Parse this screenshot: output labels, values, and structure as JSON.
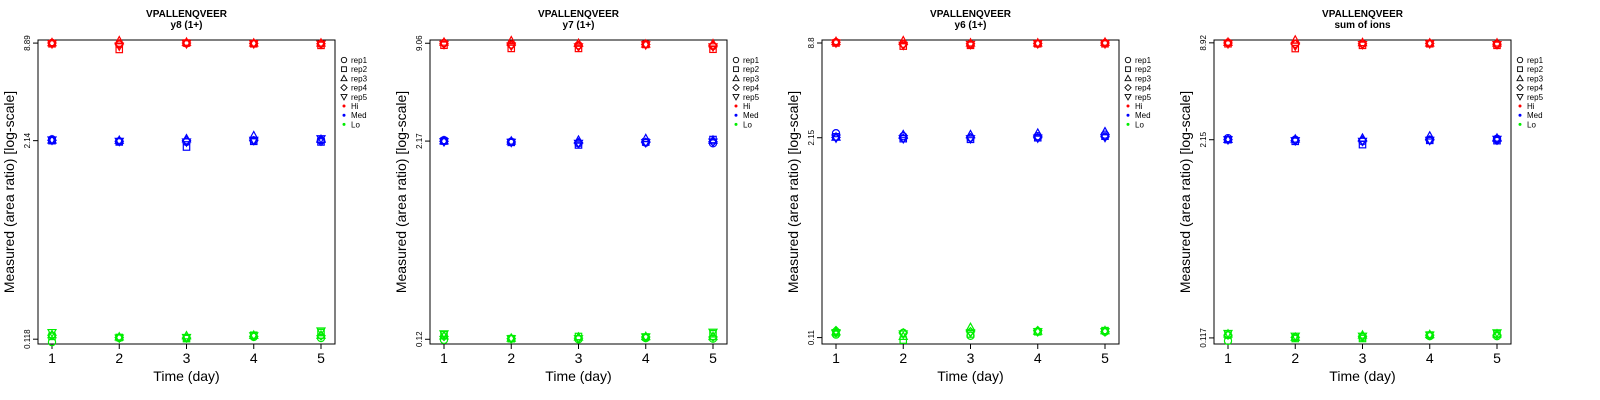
{
  "chart_data": [
    {
      "type": "scatter",
      "title": "VPALLENQVEER",
      "subtitle": "y8 (1+)",
      "xlabel": "Time (day)",
      "ylabel": "Measured (area ratio) [log-scale]",
      "x_ticks": [
        "1",
        "2",
        "3",
        "4",
        "5"
      ],
      "y_ticks": [
        "0.118",
        "2.14",
        "8.89"
      ],
      "y_tick_values": [
        0.118,
        2.14,
        8.89
      ],
      "ylim": [
        0.11,
        9.3
      ],
      "y_scale": "log",
      "x": [
        1,
        2,
        3,
        4,
        5
      ],
      "series": [
        {
          "name": "Hi",
          "color": "#ff0000",
          "reps": [
            [
              8.9,
              8.7,
              8.85,
              8.85,
              8.8
            ],
            [
              8.8,
              8.1,
              8.9,
              8.8,
              8.6
            ],
            [
              8.95,
              9.2,
              9.0,
              8.9,
              8.9
            ],
            [
              8.9,
              8.8,
              8.9,
              8.85,
              8.8
            ],
            [
              8.8,
              8.5,
              8.8,
              8.8,
              8.75
            ]
          ]
        },
        {
          "name": "Med",
          "color": "#0000ff",
          "reps": [
            [
              2.18,
              2.12,
              2.1,
              2.15,
              2.16
            ],
            [
              2.14,
              2.1,
              1.95,
              2.12,
              2.1
            ],
            [
              2.16,
              2.15,
              2.2,
              2.3,
              2.18
            ],
            [
              2.15,
              2.12,
              2.14,
              2.14,
              2.12
            ],
            [
              2.16,
              2.12,
              2.1,
              2.15,
              2.2
            ]
          ]
        },
        {
          "name": "Lo",
          "color": "#00ee00",
          "reps": [
            [
              0.113,
              0.12,
              0.12,
              0.122,
              0.12
            ],
            [
              0.123,
              0.121,
              0.119,
              0.125,
              0.13
            ],
            [
              0.126,
              0.122,
              0.124,
              0.125,
              0.125
            ],
            [
              0.125,
              0.121,
              0.12,
              0.123,
              0.124
            ],
            [
              0.13,
              0.12,
              0.121,
              0.124,
              0.133
            ]
          ]
        }
      ]
    },
    {
      "type": "scatter",
      "title": "VPALLENQVEER",
      "subtitle": "y7 (1+)",
      "xlabel": "Time (day)",
      "ylabel": "Measured (area ratio) [log-scale]",
      "x_ticks": [
        "1",
        "2",
        "3",
        "4",
        "5"
      ],
      "y_ticks": [
        "0.12",
        "2.17",
        "9.06"
      ],
      "y_tick_values": [
        0.12,
        2.17,
        9.06
      ],
      "ylim": [
        0.112,
        9.5
      ],
      "y_scale": "log",
      "x": [
        1,
        2,
        3,
        4,
        5
      ],
      "series": [
        {
          "name": "Hi",
          "color": "#ff0000",
          "reps": [
            [
              9.1,
              8.9,
              8.8,
              8.95,
              8.7
            ],
            [
              8.8,
              8.4,
              8.4,
              8.9,
              8.3
            ],
            [
              9.2,
              9.4,
              9.05,
              8.95,
              9.0
            ],
            [
              9.0,
              8.8,
              8.7,
              8.9,
              8.8
            ],
            [
              8.9,
              8.7,
              8.6,
              8.85,
              8.6
            ]
          ]
        },
        {
          "name": "Med",
          "color": "#0000ff",
          "reps": [
            [
              2.2,
              2.15,
              2.1,
              2.12,
              2.1
            ],
            [
              2.17,
              2.13,
              2.05,
              2.14,
              2.22
            ],
            [
              2.18,
              2.17,
              2.2,
              2.25,
              2.2
            ],
            [
              2.16,
              2.14,
              2.12,
              2.13,
              2.15
            ],
            [
              2.15,
              2.13,
              2.1,
              2.12,
              2.14
            ]
          ]
        },
        {
          "name": "Lo",
          "color": "#00ee00",
          "reps": [
            [
              0.119,
              0.121,
              0.12,
              0.122,
              0.121
            ],
            [
              0.128,
              0.121,
              0.125,
              0.124,
              0.13
            ],
            [
              0.126,
              0.122,
              0.124,
              0.125,
              0.125
            ],
            [
              0.125,
              0.121,
              0.122,
              0.124,
              0.124
            ],
            [
              0.13,
              0.121,
              0.121,
              0.124,
              0.133
            ]
          ]
        }
      ]
    },
    {
      "type": "scatter",
      "title": "VPALLENQVEER",
      "subtitle": "y6 (1+)",
      "xlabel": "Time (day)",
      "ylabel": "Measured (area ratio) [log-scale]",
      "x_ticks": [
        "1",
        "2",
        "3",
        "4",
        "5"
      ],
      "y_ticks": [
        "0.11",
        "2.15",
        "8.8"
      ],
      "y_tick_values": [
        0.11,
        2.15,
        8.8
      ],
      "ylim": [
        0.1,
        9.2
      ],
      "y_scale": "log",
      "x": [
        1,
        2,
        3,
        4,
        5
      ],
      "series": [
        {
          "name": "Hi",
          "color": "#ff0000",
          "reps": [
            [
              8.9,
              8.7,
              8.6,
              8.7,
              8.8
            ],
            [
              8.8,
              8.4,
              8.5,
              8.7,
              8.7
            ],
            [
              9.0,
              9.1,
              8.8,
              8.8,
              8.9
            ],
            [
              8.9,
              8.6,
              8.7,
              8.75,
              8.8
            ],
            [
              8.8,
              8.5,
              8.6,
              8.7,
              8.7
            ]
          ]
        },
        {
          "name": "Med",
          "color": "#0000ff",
          "reps": [
            [
              2.3,
              2.2,
              2.15,
              2.2,
              2.25
            ],
            [
              2.18,
              2.12,
              2.1,
              2.15,
              2.2
            ],
            [
              2.17,
              2.25,
              2.25,
              2.3,
              2.35
            ],
            [
              2.16,
              2.13,
              2.15,
              2.15,
              2.18
            ],
            [
              2.14,
              2.12,
              2.12,
              2.14,
              2.16
            ]
          ]
        },
        {
          "name": "Lo",
          "color": "#00ee00",
          "reps": [
            [
              0.115,
              0.118,
              0.113,
              0.12,
              0.12
            ],
            [
              0.118,
              0.106,
              0.116,
              0.12,
              0.122
            ],
            [
              0.12,
              0.112,
              0.128,
              0.121,
              0.122
            ],
            [
              0.122,
              0.118,
              0.12,
              0.122,
              0.12
            ],
            [
              0.118,
              0.116,
              0.118,
              0.12,
              0.12
            ]
          ]
        }
      ]
    },
    {
      "type": "scatter",
      "title": "VPALLENQVEER",
      "subtitle": "sum of ions",
      "xlabel": "Time (day)",
      "ylabel": "Measured (area ratio) [log-scale]",
      "x_ticks": [
        "1",
        "2",
        "3",
        "4",
        "5"
      ],
      "y_ticks": [
        "0.117",
        "2.15",
        "8.92"
      ],
      "y_tick_values": [
        0.117,
        2.15,
        8.92
      ],
      "ylim": [
        0.107,
        9.3
      ],
      "y_scale": "log",
      "x": [
        1,
        2,
        3,
        4,
        5
      ],
      "series": [
        {
          "name": "Hi",
          "color": "#ff0000",
          "reps": [
            [
              8.95,
              8.8,
              8.8,
              8.85,
              8.75
            ],
            [
              8.8,
              8.2,
              8.6,
              8.8,
              8.6
            ],
            [
              9.0,
              9.3,
              8.95,
              8.9,
              8.9
            ],
            [
              8.9,
              8.75,
              8.8,
              8.85,
              8.75
            ],
            [
              8.8,
              8.5,
              8.7,
              8.8,
              8.7
            ]
          ]
        },
        {
          "name": "Med",
          "color": "#0000ff",
          "reps": [
            [
              2.2,
              2.15,
              2.1,
              2.15,
              2.18
            ],
            [
              2.15,
              2.1,
              2.0,
              2.13,
              2.12
            ],
            [
              2.16,
              2.17,
              2.2,
              2.27,
              2.2
            ],
            [
              2.15,
              2.12,
              2.13,
              2.14,
              2.13
            ],
            [
              2.15,
              2.12,
              2.1,
              2.13,
              2.16
            ]
          ]
        },
        {
          "name": "Lo",
          "color": "#00ee00",
          "reps": [
            [
              0.112,
              0.118,
              0.118,
              0.12,
              0.12
            ],
            [
              0.122,
              0.116,
              0.116,
              0.122,
              0.124
            ],
            [
              0.124,
              0.118,
              0.122,
              0.123,
              0.124
            ],
            [
              0.122,
              0.118,
              0.12,
              0.122,
              0.122
            ],
            [
              0.125,
              0.12,
              0.12,
              0.122,
              0.126
            ]
          ]
        }
      ]
    }
  ],
  "legend": {
    "reps": [
      {
        "label": "rep1",
        "shape": "circle"
      },
      {
        "label": "rep2",
        "shape": "square"
      },
      {
        "label": "rep3",
        "shape": "triangle"
      },
      {
        "label": "rep4",
        "shape": "diamond"
      },
      {
        "label": "rep5",
        "shape": "triangle-down"
      }
    ],
    "groups": [
      {
        "label": "Hi",
        "color": "#ff0000"
      },
      {
        "label": "Med",
        "color": "#0000ff"
      },
      {
        "label": "Lo",
        "color": "#00ee00"
      }
    ]
  }
}
